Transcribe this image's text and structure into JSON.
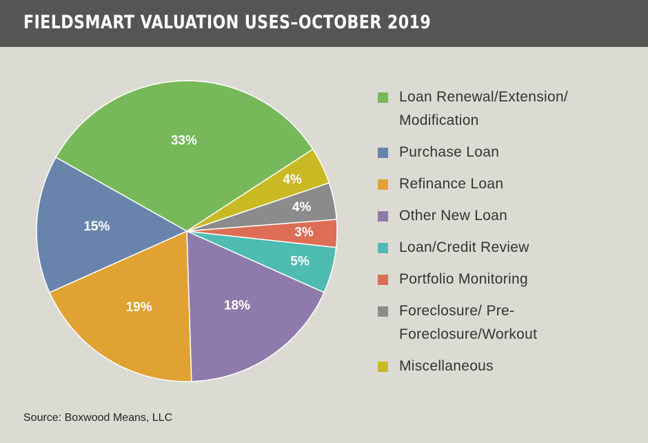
{
  "chart_data": {
    "type": "pie",
    "title": "FIELDSMART VALUATION USES–OCTOBER 2019",
    "series": [
      {
        "name": "Loan Renewal/Extension/ Modification",
        "color": "#77b95a",
        "values": [
          33
        ],
        "value_labels": [
          "33%"
        ]
      },
      {
        "name": "Purchase Loan",
        "color": "#6884ad",
        "values": [
          15
        ],
        "value_labels": [
          "15%"
        ]
      },
      {
        "name": "Refinance Loan",
        "color": "#e0a232",
        "values": [
          19
        ],
        "value_labels": [
          "19%"
        ]
      },
      {
        "name": "Other New Loan",
        "color": "#8f7bab",
        "values": [
          18
        ],
        "value_labels": [
          "18%"
        ]
      },
      {
        "name": "Loan/Credit Review",
        "color": "#4ebcb0",
        "values": [
          5
        ],
        "value_labels": [
          "5%"
        ]
      },
      {
        "name": "Portfolio Monitoring",
        "color": "#dd6d55",
        "values": [
          3
        ],
        "value_labels": [
          "3%"
        ]
      },
      {
        "name": "Foreclosure/ Pre-Foreclosure/Workout",
        "color": "#8b8b8b",
        "values": [
          4
        ],
        "value_labels": [
          "4%"
        ]
      },
      {
        "name": "Miscellaneous",
        "color": "#c9b923",
        "values": [
          4
        ],
        "value_labels": [
          "4%"
        ]
      }
    ],
    "source": "Source: Boxwood Means, LLC"
  }
}
